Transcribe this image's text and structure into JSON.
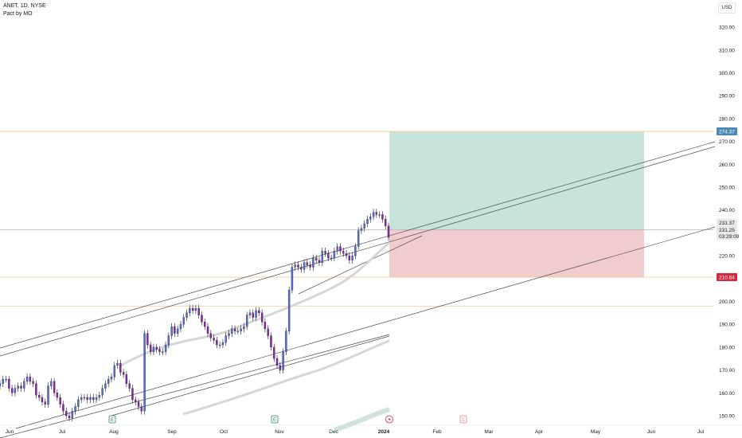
{
  "header": {
    "symbol": "ANET, 1D, NYSE",
    "author": "Pact by MO"
  },
  "currency": "USD",
  "price_labels": {
    "target": "274.37",
    "last": "231.37",
    "current": "231.25",
    "countdown": "03:29:09",
    "stop": "210.64"
  },
  "event_markers": [
    "E",
    "E",
    "E"
  ],
  "colors": {
    "bull": "#5b6fd9",
    "bear": "#8e24aa",
    "target_zone": "#c1e0d8",
    "stop_zone": "#f0c6c9",
    "target_badge": "#4a8ab2",
    "stop_badge": "#d0283c",
    "level_line": "#f5c28a"
  },
  "chart_data": {
    "type": "candlestick",
    "title": "ANET, 1D, NYSE",
    "x_tick_labels": [
      "Jun",
      "Jul",
      "Aug",
      "Sep",
      "Oct",
      "Nov",
      "Dec",
      "2024",
      "Feb",
      "Mar",
      "Apr",
      "May",
      "Jun",
      "Jul"
    ],
    "y_ticks": [
      150,
      160,
      170,
      180,
      190,
      200,
      210,
      220,
      230,
      240,
      250,
      260,
      270,
      280,
      290,
      300,
      310,
      320
    ],
    "ylim": [
      148,
      325
    ],
    "horizontal_levels": [
      274.37,
      231.37,
      210.64,
      198
    ],
    "position_tool": {
      "entry": 231.37,
      "target": 274.37,
      "stop": 210.64
    },
    "candles_close": [
      164,
      166,
      166,
      162,
      160,
      162,
      163,
      162,
      165,
      167,
      165,
      164,
      159,
      158,
      156,
      155,
      163,
      165,
      160,
      158,
      155,
      152,
      150,
      149,
      152,
      154,
      157,
      158,
      158,
      157,
      158,
      157,
      158,
      159,
      162,
      164,
      166,
      167,
      172,
      173,
      169,
      168,
      164,
      162,
      157,
      156,
      154,
      152,
      186,
      181,
      178,
      180,
      179,
      178,
      178,
      181,
      185,
      189,
      186,
      188,
      190,
      193,
      195,
      197,
      196,
      197,
      194,
      191,
      189,
      186,
      184,
      183,
      181,
      181,
      182,
      185,
      186,
      188,
      187,
      187,
      188,
      189,
      194,
      195,
      193,
      196,
      195,
      191,
      188,
      185,
      180,
      175,
      172,
      170,
      178,
      187,
      205,
      215,
      216,
      215,
      214,
      217,
      216,
      215,
      219,
      218,
      217,
      222,
      221,
      219,
      219,
      222,
      224,
      222,
      221,
      220,
      218,
      220,
      224,
      231,
      232,
      234,
      236,
      237,
      239,
      238,
      238,
      236,
      233,
      228
    ]
  }
}
